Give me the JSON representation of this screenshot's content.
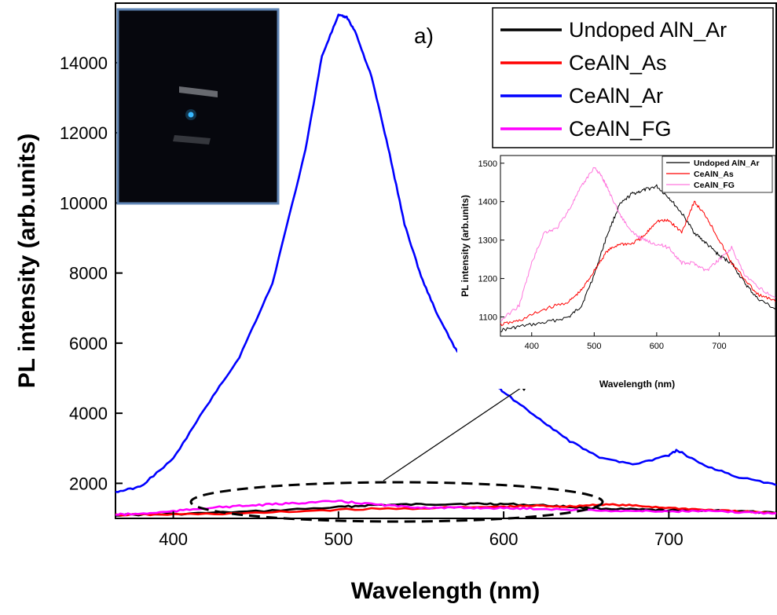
{
  "chart_data": [
    {
      "type": "line",
      "panel_label": "a)",
      "xlabel": "Wavelength (nm)",
      "ylabel": "PL intensity (arb.units)",
      "xlim": [
        365,
        765
      ],
      "ylim": [
        1000,
        15700
      ],
      "xticks": [
        400,
        500,
        600,
        700
      ],
      "yticks": [
        2000,
        4000,
        6000,
        8000,
        10000,
        12000,
        14000
      ],
      "grid": false,
      "legend_position": "top-right",
      "series": [
        {
          "name": "Undoped AlN_Ar",
          "color": "#000000",
          "x": [
            365,
            400,
            450,
            500,
            520,
            550,
            580,
            600,
            630,
            650,
            680,
            700,
            730,
            765
          ],
          "y": [
            1100,
            1120,
            1200,
            1320,
            1380,
            1400,
            1420,
            1410,
            1360,
            1300,
            1250,
            1230,
            1230,
            1150
          ]
        },
        {
          "name": "CeAlN_As",
          "color": "#ff0000",
          "x": [
            365,
            400,
            450,
            500,
            550,
            600,
            620,
            640,
            660,
            680,
            700,
            720,
            740,
            765
          ],
          "y": [
            1100,
            1110,
            1150,
            1250,
            1290,
            1330,
            1360,
            1340,
            1400,
            1360,
            1300,
            1250,
            1200,
            1150
          ]
        },
        {
          "name": "CeAlN_Ar",
          "color": "#0000ff",
          "x": [
            365,
            380,
            400,
            420,
            440,
            460,
            480,
            490,
            500,
            505,
            510,
            520,
            530,
            540,
            550,
            560,
            570,
            580,
            590,
            600,
            620,
            640,
            660,
            680,
            700,
            705,
            720,
            740,
            765
          ],
          "y": [
            1750,
            1900,
            2700,
            4200,
            5600,
            7700,
            11500,
            14200,
            15350,
            15300,
            14900,
            13600,
            11600,
            9400,
            7900,
            6800,
            5900,
            5300,
            5000,
            4600,
            3900,
            3200,
            2700,
            2550,
            2800,
            2950,
            2550,
            2200,
            1950
          ]
        },
        {
          "name": "CeAlN_FG",
          "color": "#ff00ff",
          "x": [
            365,
            380,
            400,
            420,
            440,
            460,
            480,
            500,
            520,
            540,
            560,
            580,
            600,
            620,
            650,
            680,
            700,
            720,
            740,
            765
          ],
          "y": [
            1110,
            1130,
            1200,
            1300,
            1350,
            1400,
            1450,
            1490,
            1410,
            1330,
            1300,
            1300,
            1290,
            1280,
            1230,
            1210,
            1200,
            1210,
            1180,
            1150
          ]
        }
      ]
    },
    {
      "type": "line",
      "xlabel": "Wavelength (nm)",
      "ylabel": "PL intensity (arb.units)",
      "xlim": [
        350,
        790
      ],
      "ylim": [
        1050,
        1520
      ],
      "xticks": [
        400,
        500,
        600,
        700
      ],
      "yticks": [
        1100,
        1200,
        1300,
        1400,
        1500
      ],
      "grid": false,
      "legend_position": "top-right",
      "series": [
        {
          "name": "Undoped AlN_Ar",
          "color": "#000000",
          "x": [
            350,
            380,
            420,
            460,
            480,
            500,
            520,
            540,
            560,
            580,
            600,
            620,
            640,
            660,
            680,
            700,
            720,
            740,
            760,
            790
          ],
          "y": [
            1065,
            1075,
            1085,
            1100,
            1130,
            1210,
            1310,
            1390,
            1420,
            1430,
            1440,
            1410,
            1370,
            1320,
            1290,
            1260,
            1240,
            1190,
            1150,
            1120
          ]
        },
        {
          "name": "CeAlN_As",
          "color": "#ff0000",
          "x": [
            350,
            380,
            420,
            460,
            480,
            500,
            520,
            540,
            560,
            580,
            600,
            620,
            640,
            660,
            680,
            700,
            720,
            740,
            760,
            790
          ],
          "y": [
            1080,
            1090,
            1120,
            1140,
            1170,
            1220,
            1270,
            1290,
            1290,
            1310,
            1350,
            1350,
            1320,
            1400,
            1360,
            1300,
            1240,
            1200,
            1160,
            1140
          ]
        },
        {
          "name": "CeAlN_FG",
          "color": "#ff77dd",
          "x": [
            350,
            380,
            400,
            420,
            440,
            460,
            480,
            500,
            510,
            520,
            540,
            560,
            580,
            600,
            620,
            640,
            660,
            680,
            700,
            720,
            740,
            760,
            790
          ],
          "y": [
            1090,
            1130,
            1240,
            1320,
            1330,
            1380,
            1440,
            1490,
            1470,
            1440,
            1370,
            1320,
            1300,
            1290,
            1280,
            1240,
            1240,
            1220,
            1250,
            1280,
            1210,
            1180,
            1150
          ]
        }
      ]
    }
  ]
}
